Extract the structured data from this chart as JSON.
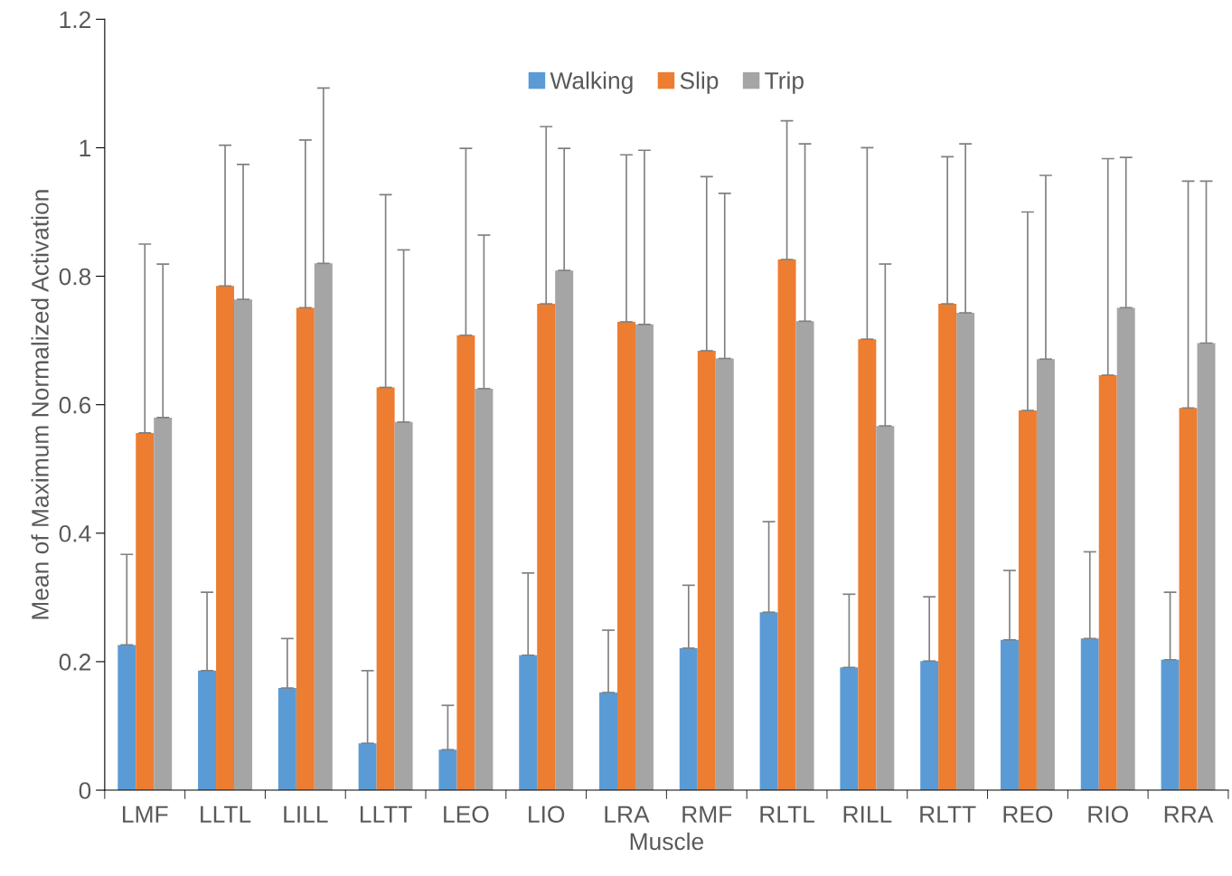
{
  "chart_data": {
    "type": "bar",
    "xlabel": "Muscle",
    "ylabel": "Mean of Maximum Normalized Activation",
    "categories": [
      "LMF",
      "LLTL",
      "LILL",
      "LLTT",
      "LEO",
      "LIO",
      "LRA",
      "RMF",
      "RLTL",
      "RILL",
      "RLTT",
      "REO",
      "RIO",
      "RRA"
    ],
    "series": [
      {
        "name": "Walking",
        "color": "#5b9bd5",
        "values": [
          0.226,
          0.186,
          0.159,
          0.073,
          0.063,
          0.21,
          0.152,
          0.221,
          0.277,
          0.191,
          0.201,
          0.234,
          0.236,
          0.203
        ],
        "errors": [
          [
            0.226,
            0.367
          ],
          [
            0.186,
            0.308
          ],
          [
            0.159,
            0.236
          ],
          [
            0.073,
            0.186
          ],
          [
            0.063,
            0.132
          ],
          [
            0.21,
            0.338
          ],
          [
            0.152,
            0.249
          ],
          [
            0.221,
            0.319
          ],
          [
            0.277,
            0.418
          ],
          [
            0.191,
            0.305
          ],
          [
            0.201,
            0.301
          ],
          [
            0.234,
            0.342
          ],
          [
            0.236,
            0.371
          ],
          [
            0.203,
            0.308
          ]
        ]
      },
      {
        "name": "Slip",
        "color": "#ed7d31",
        "values": [
          0.556,
          0.785,
          0.751,
          0.627,
          0.708,
          0.757,
          0.729,
          0.684,
          0.826,
          0.702,
          0.757,
          0.591,
          0.646,
          0.595
        ],
        "errors": [
          [
            0.556,
            0.85
          ],
          [
            0.785,
            1.004
          ],
          [
            0.751,
            1.012
          ],
          [
            0.627,
            0.927
          ],
          [
            0.708,
            0.999
          ],
          [
            0.757,
            1.033
          ],
          [
            0.729,
            0.989
          ],
          [
            0.684,
            0.955
          ],
          [
            0.826,
            1.042
          ],
          [
            0.702,
            1.0
          ],
          [
            0.757,
            0.986
          ],
          [
            0.591,
            0.9
          ],
          [
            0.646,
            0.983
          ],
          [
            0.595,
            0.948
          ]
        ]
      },
      {
        "name": "Trip",
        "color": "#a5a5a5",
        "values": [
          0.58,
          0.764,
          0.82,
          0.573,
          0.625,
          0.809,
          0.725,
          0.672,
          0.73,
          0.567,
          0.743,
          0.671,
          0.751,
          0.696
        ],
        "errors": [
          [
            0.58,
            0.819
          ],
          [
            0.764,
            0.974
          ],
          [
            0.82,
            1.093
          ],
          [
            0.573,
            0.841
          ],
          [
            0.625,
            0.864
          ],
          [
            0.809,
            0.999
          ],
          [
            0.725,
            0.996
          ],
          [
            0.672,
            0.929
          ],
          [
            0.73,
            1.006
          ],
          [
            0.567,
            0.819
          ],
          [
            0.743,
            1.006
          ],
          [
            0.671,
            0.957
          ],
          [
            0.751,
            0.985
          ],
          [
            0.696,
            0.948
          ]
        ]
      }
    ],
    "ylim": [
      0,
      1.2
    ],
    "yticks": [
      0,
      0.2,
      0.4,
      0.6,
      0.8,
      1,
      1.2
    ],
    "grid": false,
    "legend": "top"
  }
}
